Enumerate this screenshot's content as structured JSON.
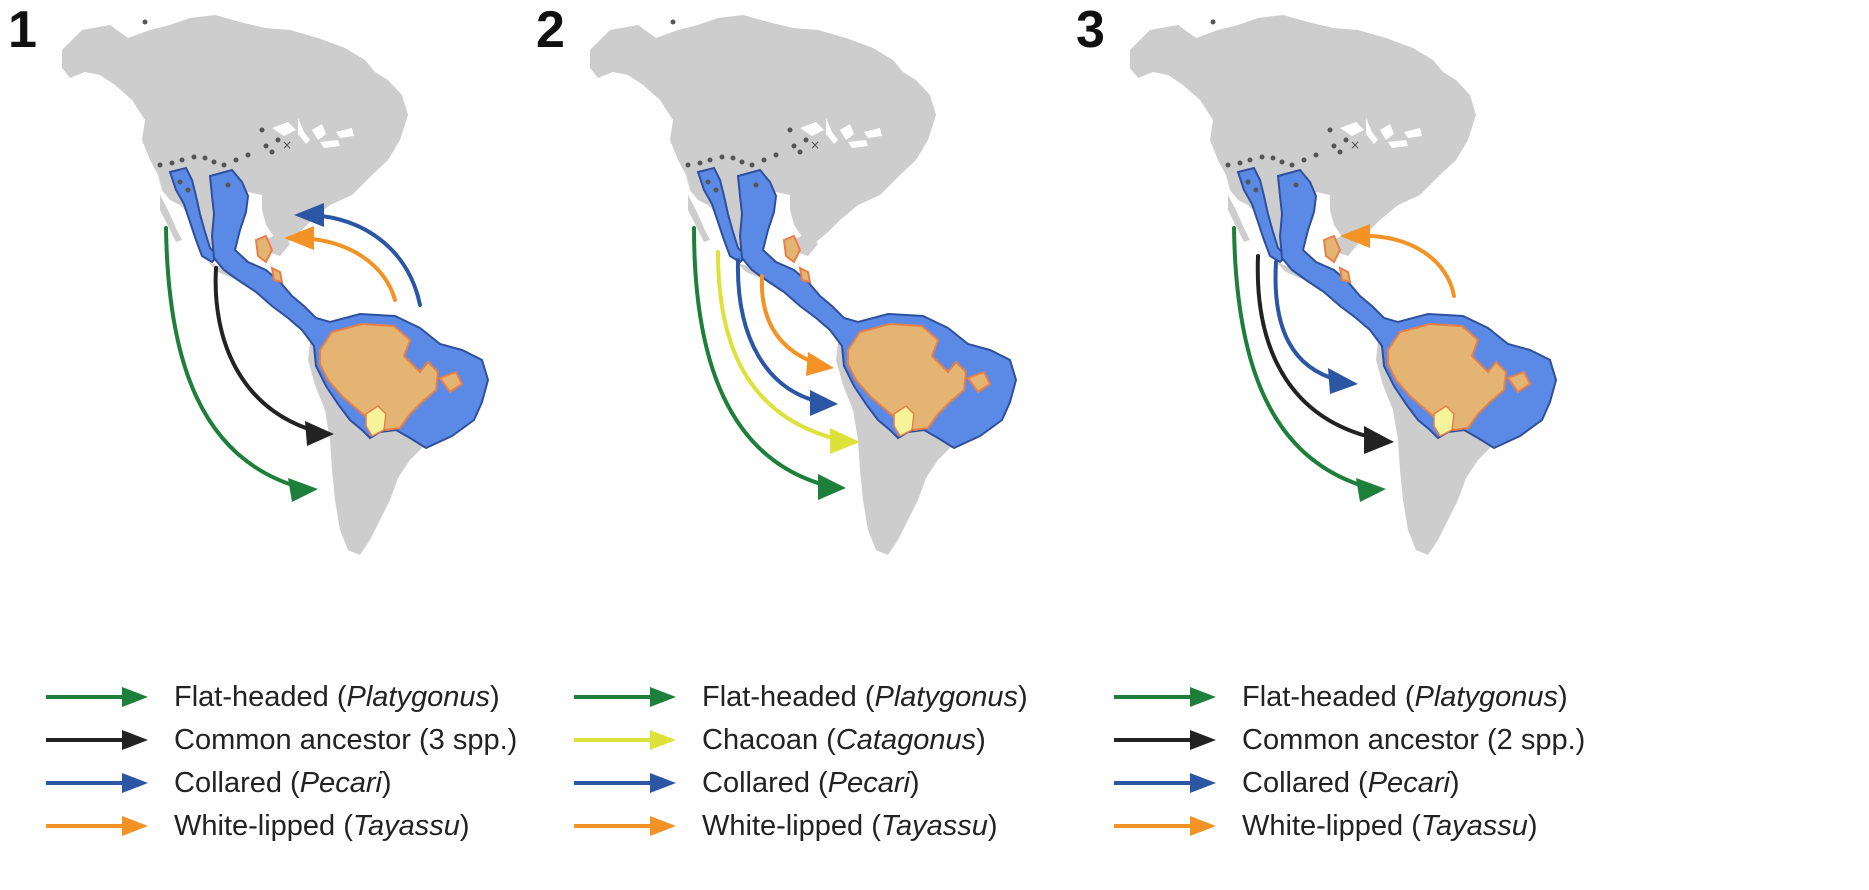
{
  "colors": {
    "land": "#cdcdcd",
    "collared_range": "#5b8ae6",
    "collared_border": "#2e4f9c",
    "whitelipped_range": "#e3b472",
    "whitelipped_border": "#e97f48",
    "chacoan_range": "#f5f49a",
    "fossil_site": "#555555",
    "green": "#1d7f3a",
    "black": "#222222",
    "blue": "#2a56a5",
    "yellow": "#dde23a",
    "orange": "#f39325"
  },
  "panels": [
    {
      "number": "1",
      "legend": [
        {
          "color": "green",
          "name": "Flat-headed (",
          "genus": "Platygonus",
          "suffix": ")"
        },
        {
          "color": "black",
          "name": "Common ancestor (3 spp.)",
          "genus": "",
          "suffix": ""
        },
        {
          "color": "blue",
          "name": "Collared (",
          "genus": "Pecari",
          "suffix": ")"
        },
        {
          "color": "orange",
          "name": "White-lipped (",
          "genus": "Tayassu",
          "suffix": ")"
        }
      ]
    },
    {
      "number": "2",
      "legend": [
        {
          "color": "green",
          "name": "Flat-headed (",
          "genus": "Platygonus",
          "suffix": ")"
        },
        {
          "color": "yellow",
          "name": "Chacoan (",
          "genus": "Catagonus",
          "suffix": ")"
        },
        {
          "color": "blue",
          "name": "Collared (",
          "genus": "Pecari",
          "suffix": ")"
        },
        {
          "color": "orange",
          "name": "White-lipped (",
          "genus": "Tayassu",
          "suffix": ")"
        }
      ]
    },
    {
      "number": "3",
      "legend": [
        {
          "color": "green",
          "name": "Flat-headed (",
          "genus": "Platygonus",
          "suffix": ")"
        },
        {
          "color": "black",
          "name": "Common ancestor (2 spp.)",
          "genus": "",
          "suffix": ""
        },
        {
          "color": "blue",
          "name": "Collared (",
          "genus": "Pecari",
          "suffix": ")"
        },
        {
          "color": "orange",
          "name": "White-lipped (",
          "genus": "Tayassu",
          "suffix": ")"
        }
      ]
    }
  ]
}
